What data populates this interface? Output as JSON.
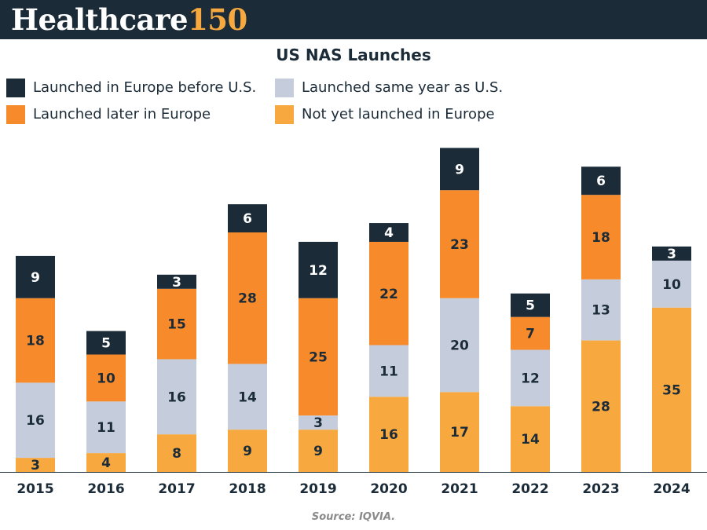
{
  "brand": {
    "name": "Healthcare",
    "number": "150"
  },
  "chart_data": {
    "type": "bar",
    "stacked": true,
    "title": "US NAS Launches",
    "categories": [
      "2015",
      "2016",
      "2017",
      "2018",
      "2019",
      "2020",
      "2021",
      "2022",
      "2023",
      "2024"
    ],
    "series": [
      {
        "name": "Not yet launched in Europe",
        "color": "#f7a93f",
        "values": [
          3,
          4,
          8,
          9,
          9,
          16,
          17,
          14,
          28,
          35
        ]
      },
      {
        "name": "Launched same year as U.S.",
        "color": "#c5cddc",
        "values": [
          16,
          11,
          16,
          14,
          3,
          11,
          20,
          12,
          13,
          10
        ]
      },
      {
        "name": "Launched later in Europe",
        "color": "#f78a2a",
        "values": [
          18,
          10,
          15,
          28,
          25,
          22,
          23,
          7,
          18,
          0
        ]
      },
      {
        "name": "Launched in Europe before U.S.",
        "color": "#1b2b38",
        "values": [
          9,
          5,
          3,
          6,
          12,
          4,
          9,
          5,
          6,
          3
        ]
      }
    ],
    "ylim": [
      0,
      80
    ],
    "xlabel": "",
    "ylabel": "",
    "legend": "top-left"
  },
  "legend": [
    {
      "label": "Launched in Europe before U.S.",
      "color": "#1b2b38"
    },
    {
      "label": "Launched same year as U.S.",
      "color": "#c5cddc"
    },
    {
      "label": "Launched later in Europe",
      "color": "#f78a2a"
    },
    {
      "label": "Not yet launched in Europe",
      "color": "#f7a93f"
    }
  ],
  "source": "Source: IQVIA."
}
